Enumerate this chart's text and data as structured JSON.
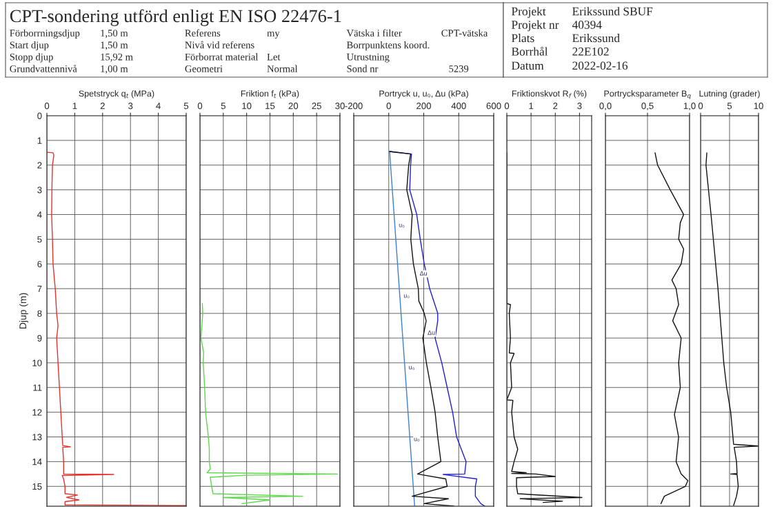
{
  "chart_data": [
    {
      "type": "other",
      "title": "CPT-sondering utförd enligt EN ISO 22476-1",
      "annotations": [
        "Förborrningsdjup",
        "1,50 m",
        "Start djup",
        "1,50 m",
        "Stopp djup",
        "15,92 m",
        "Grundvattennivå",
        "1,00 m",
        "Referens",
        "my",
        "Nivå vid referens",
        "Förborrat material",
        "Let",
        "Geometri",
        "Normal",
        "Vätska i filter",
        "CPT-vätska",
        "Borrpunktens koord.",
        "Utrustning",
        "Sond nr",
        "5239",
        "Projekt",
        "Erikssund SBUF",
        "Projekt nr",
        "40394",
        "Plats",
        "Erikssund",
        "Borrhål",
        "22E102",
        "Datum",
        "2022-02-16"
      ]
    },
    {
      "type": "line",
      "title": "Spetstryck q$_{t}$ (MPa)",
      "ylabel": "Djup (m)",
      "xlim": [
        0,
        5
      ],
      "xticks": [
        0,
        1,
        2,
        3,
        4,
        5
      ],
      "ylim": [
        15.8,
        0
      ],
      "yticks": [
        0,
        1,
        2,
        3,
        4,
        5,
        6,
        7,
        8,
        9,
        10,
        11,
        12,
        13,
        14,
        15
      ],
      "grid": true,
      "series": [
        {
          "color": "#e8312a",
          "x": [
            0.0,
            0.22,
            0.25,
            0.2,
            0.18,
            0.17,
            0.2,
            0.22,
            0.3,
            0.35,
            0.4,
            0.35,
            0.4,
            0.45,
            0.5,
            0.55,
            0.57,
            0.85,
            0.57,
            0.6,
            0.6,
            2.4,
            0.55,
            0.6,
            0.65,
            0.65,
            1.1,
            0.7,
            1.15,
            0.65,
            0.65,
            5.0
          ],
          "values": [
            1.48,
            1.5,
            1.6,
            2.0,
            3.0,
            4.0,
            5.0,
            6.0,
            7.0,
            8.0,
            8.5,
            9.0,
            10.0,
            11.0,
            12.0,
            13.0,
            13.35,
            13.4,
            13.42,
            14.0,
            14.5,
            14.52,
            14.56,
            14.7,
            15.0,
            15.3,
            15.35,
            15.45,
            15.55,
            15.62,
            15.75,
            15.78
          ]
        }
      ]
    },
    {
      "type": "line",
      "title": "Friktion f$_{t}$ (kPa)",
      "xlim": [
        0,
        30
      ],
      "xticks": [
        0,
        5,
        10,
        15,
        20,
        25,
        30
      ],
      "ylim": [
        15.8,
        0
      ],
      "yticks": [
        0,
        1,
        2,
        3,
        4,
        5,
        6,
        7,
        8,
        9,
        10,
        11,
        12,
        13,
        14,
        15
      ],
      "grid": true,
      "tick_labels": "x",
      "series": [
        {
          "color": "#5cd64a",
          "x": [
            0.5,
            0.6,
            0.2,
            0.8,
            0.7,
            1.0,
            1.2,
            1.8,
            2.0,
            2.0,
            2.2,
            1.5,
            29.5,
            10,
            2.2,
            2.5,
            2.8,
            22,
            5,
            15,
            9
          ],
          "values": [
            7.6,
            8.0,
            9.0,
            9.6,
            10.0,
            11.0,
            12.0,
            13.0,
            13.5,
            14.0,
            14.3,
            14.45,
            14.5,
            14.55,
            14.63,
            15.0,
            15.3,
            15.4,
            15.45,
            15.55,
            15.7
          ]
        }
      ]
    },
    {
      "type": "line",
      "title": "Portryck u, u₀, Δu (kPa)",
      "xlim": [
        -200,
        600
      ],
      "xticks": [
        -200,
        0,
        200,
        400,
        600
      ],
      "ylim": [
        15.8,
        0
      ],
      "yticks": [
        0,
        1,
        2,
        3,
        4,
        5,
        6,
        7,
        8,
        9,
        10,
        11,
        12,
        13,
        14,
        15
      ],
      "grid": true,
      "tick_labels": "x",
      "annotations": [
        {
          "text": "u₀",
          "x": 35,
          "y": 4.44
        },
        {
          "text": "u₀",
          "x": 63,
          "y": 7.3
        },
        {
          "text": "u₀",
          "x": 92,
          "y": 10.2
        },
        {
          "text": "u₀",
          "x": 121,
          "y": 13.1
        },
        {
          "text": "Δu",
          "x": 155,
          "y": 6.4
        },
        {
          "text": "Δu",
          "x": 200,
          "y": 8.8
        }
      ],
      "series": [
        {
          "color": "#3a7fd8",
          "x": [
            5,
            148
          ],
          "values": [
            1.45,
            15.8
          ]
        },
        {
          "color": "#1f1fd0",
          "x": [
            5,
            130,
            125,
            120,
            160,
            180,
            203,
            234,
            280,
            280,
            265,
            303,
            334,
            365,
            388,
            442,
            434,
            311,
            503,
            495,
            495,
            526,
            549
          ],
          "values": [
            1.45,
            1.55,
            2.0,
            3.0,
            4.0,
            5.0,
            6.0,
            7.0,
            8.0,
            8.3,
            9.0,
            10.0,
            11.0,
            12.0,
            13.0,
            14.0,
            14.5,
            14.52,
            14.7,
            15.0,
            15.4,
            15.7,
            15.8
          ]
        },
        {
          "color": "#111111",
          "x": [
            5,
            125,
            114,
            103,
            134,
            126,
            141,
            169,
            172,
            203,
            214,
            195,
            215,
            241,
            265,
            280,
            298,
            165,
            326,
            334,
            134,
            341,
            203,
            372
          ],
          "values": [
            1.45,
            1.55,
            2.0,
            3.0,
            4.0,
            5.0,
            6.0,
            7.0,
            7.5,
            8.0,
            8.3,
            9.0,
            10.0,
            11.0,
            12.0,
            13.0,
            14.0,
            14.5,
            14.7,
            15.0,
            15.4,
            15.5,
            15.7,
            15.8
          ]
        }
      ]
    },
    {
      "type": "line",
      "title": "Friktionskvot R$_{f}$ (%)",
      "xlim": [
        0,
        3.5
      ],
      "xticks": [
        0,
        1,
        2,
        3
      ],
      "ylim": [
        15.8,
        0
      ],
      "yticks": [
        0,
        1,
        2,
        3,
        4,
        5,
        6,
        7,
        8,
        9,
        10,
        11,
        12,
        13,
        14,
        15
      ],
      "grid": true,
      "tick_labels": "x",
      "series": [
        {
          "color": "#111111",
          "x": [
            0,
            0,
            0.15,
            0.1,
            0.15,
            0.1,
            0.3,
            0.15,
            0.2,
            0.0,
            0.25,
            0.2,
            0.3,
            0.45,
            0.3,
            0.2,
            0.8,
            0.2,
            1.2,
            2.0,
            0.4,
            0.4,
            0.45,
            3.1,
            0.55,
            2.3,
            1.5
          ],
          "values": [
            1.5,
            7.6,
            7.65,
            8.0,
            9.0,
            9.6,
            9.62,
            10.0,
            11.0,
            11.5,
            11.52,
            12.0,
            13.0,
            13.5,
            14.0,
            14.4,
            14.45,
            14.48,
            14.5,
            14.6,
            14.65,
            15.0,
            15.3,
            15.45,
            15.5,
            15.6,
            15.65
          ]
        }
      ]
    },
    {
      "type": "line",
      "title": "Portrycksparameter B$_{q}$",
      "xlim": [
        0,
        1
      ],
      "xticks": [
        {
          "value": 0,
          "label": "0,0"
        },
        {
          "value": 0.5,
          "label": "0,5"
        },
        {
          "value": 1,
          "label": "1,0"
        }
      ],
      "ylim": [
        15.8,
        0
      ],
      "yticks": [
        0,
        1,
        2,
        3,
        4,
        5,
        6,
        7,
        8,
        9,
        10,
        11,
        12,
        13,
        14,
        15
      ],
      "grid": true,
      "tick_labels": "x",
      "series": [
        {
          "color": "#111111",
          "x": [
            0.59,
            0.62,
            0.77,
            0.93,
            0.89,
            0.87,
            0.93,
            0.9,
            0.79,
            0.84,
            0.87,
            0.8,
            0.9,
            0.87,
            0.89,
            0.82,
            0.87,
            0.84,
            0.9,
            0.98,
            0.95,
            0.7,
            0.66
          ],
          "values": [
            1.5,
            2.0,
            3.0,
            4.0,
            4.33,
            5.0,
            5.4,
            6.0,
            6.65,
            7.0,
            7.65,
            8.3,
            9.0,
            10.0,
            11.0,
            12.1,
            13.0,
            14.0,
            14.5,
            14.77,
            15.0,
            15.4,
            15.7
          ]
        }
      ]
    },
    {
      "type": "line",
      "title": "Lutning (grader)",
      "xlim": [
        0,
        10
      ],
      "xticks": [
        0,
        5,
        10
      ],
      "ylim": [
        15.8,
        0
      ],
      "yticks": [
        0,
        1,
        2,
        3,
        4,
        5,
        6,
        7,
        8,
        9,
        10,
        11,
        12,
        13,
        14,
        15
      ],
      "grid": true,
      "tick_labels": "x",
      "series": [
        {
          "color": "#111111",
          "x": [
            1.08,
            0.93,
            1.8,
            3.0,
            4.0,
            4.5,
            5.2,
            5.7,
            10.0,
            5.8,
            6.2,
            6.3,
            5.2,
            6.3,
            6.5,
            6.2,
            5.7
          ],
          "values": [
            1.5,
            2.0,
            4.0,
            7.0,
            10.0,
            11.0,
            12.0,
            13.3,
            13.37,
            13.42,
            14.0,
            14.48,
            14.5,
            14.52,
            15.0,
            15.4,
            15.77
          ]
        }
      ]
    }
  ]
}
